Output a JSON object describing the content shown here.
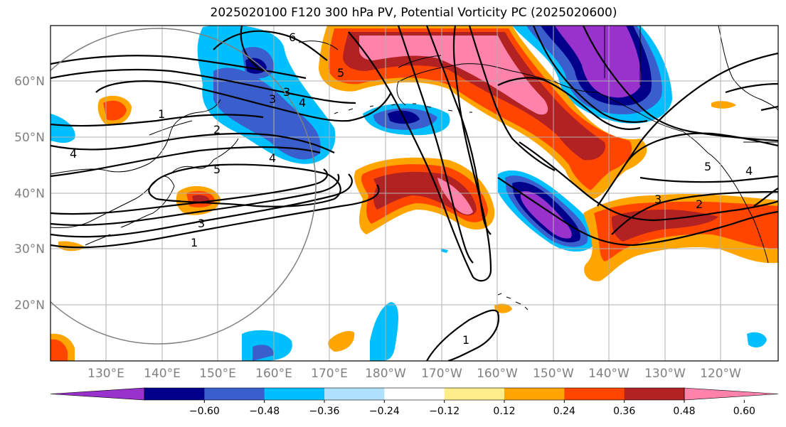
{
  "title": "2025020100 F120 300 hPa PV, Potential Vorticity PC (2025020600)",
  "lat_labels": [
    "60°N",
    "50°N",
    "40°N",
    "30°N",
    "20°N"
  ],
  "lon_labels": [
    "130°E",
    "140°E",
    "150°E",
    "160°E",
    "170°E",
    "180°W",
    "170°W",
    "160°W",
    "150°W",
    "140°W",
    "130°W",
    "120°W"
  ],
  "colorbar": {
    "ticks": [
      "−0.60",
      "−0.48",
      "−0.36",
      "−0.24",
      "−0.12",
      "0.12",
      "0.24",
      "0.36",
      "0.48",
      "0.60"
    ],
    "colors": [
      "#9932cc",
      "#00008b",
      "#3a5fcd",
      "#00bfff",
      "#b0e2ff",
      "#ffffff",
      "#ffec8b",
      "#ffa500",
      "#ff4500",
      "#b22222",
      "#ff82ab"
    ]
  },
  "contour_labels": [
    "6",
    "5",
    "1",
    "2",
    "3",
    "3",
    "4",
    "4",
    "5",
    "4",
    "3",
    "1",
    "5",
    "4",
    "3",
    "2",
    "1"
  ],
  "colors": {
    "frame": "#000000",
    "grid": "#b0b0b0",
    "contour": "#000000",
    "circle": "#808080"
  }
}
